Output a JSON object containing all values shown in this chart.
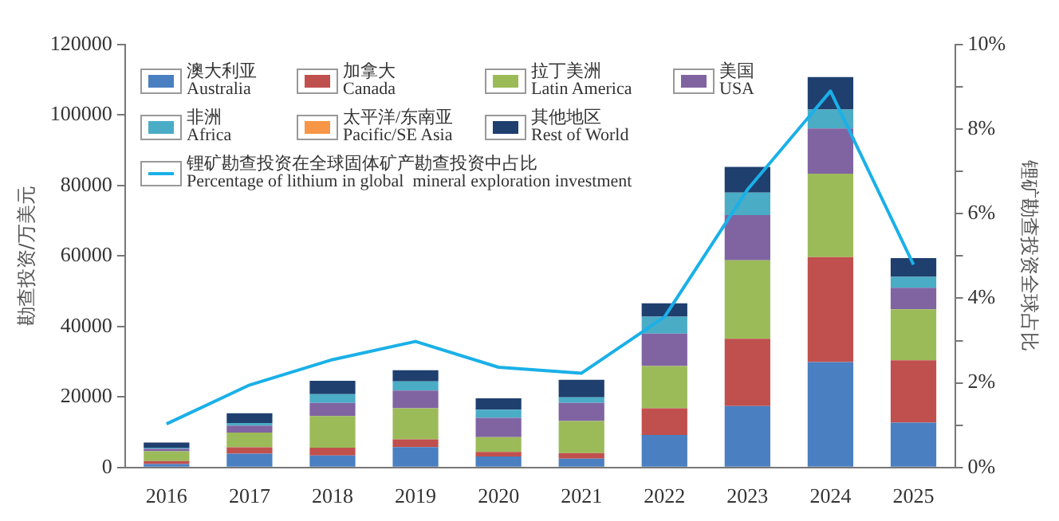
{
  "chart_data": {
    "type": "bar",
    "stacked": true,
    "categories": [
      "2016",
      "2017",
      "2018",
      "2019",
      "2020",
      "2021",
      "2022",
      "2023",
      "2024",
      "2025"
    ],
    "ylabel": "勘查投资/万美元",
    "y2label": "锂矿勘查投资全球占比",
    "ylim": [
      0,
      120000
    ],
    "yticks": [
      0,
      20000,
      40000,
      60000,
      80000,
      100000,
      120000
    ],
    "y2lim": [
      0,
      10
    ],
    "y2ticks": [
      {
        "value": 0,
        "label": "0%"
      },
      {
        "value": 1,
        "label": null
      },
      {
        "value": 2,
        "label": "2%"
      },
      {
        "value": 3,
        "label": null
      },
      {
        "value": 4,
        "label": "4%"
      },
      {
        "value": 5,
        "label": null
      },
      {
        "value": 6,
        "label": "6%"
      },
      {
        "value": 7,
        "label": null
      },
      {
        "value": 8,
        "label": "8%"
      },
      {
        "value": 9,
        "label": null
      },
      {
        "value": 10,
        "label": "10%"
      }
    ],
    "grid": false,
    "legend": "top left",
    "series": [
      {
        "name": "澳大利亚\nAustralia",
        "color": "#4a7fc1",
        "values": [
          1000,
          3900,
          3400,
          5800,
          3100,
          2500,
          9200,
          17400,
          29900,
          12700
        ]
      },
      {
        "name": "加拿大\nCanada",
        "color": "#c0504d",
        "values": [
          800,
          1800,
          2200,
          2200,
          1300,
          1600,
          7600,
          19100,
          29800,
          17700
        ]
      },
      {
        "name": "拉丁美洲\nLatin America",
        "color": "#9bbb59",
        "values": [
          2800,
          4200,
          9000,
          8800,
          4200,
          9100,
          12000,
          22300,
          23700,
          14500
        ]
      },
      {
        "name": "美国\nUSA",
        "color": "#8064a2",
        "values": [
          700,
          2000,
          3700,
          5000,
          5500,
          5100,
          9200,
          12800,
          12800,
          6100
        ]
      },
      {
        "name": "非洲\nAfrica",
        "color": "#4bacc6",
        "values": [
          300,
          700,
          2500,
          2600,
          2300,
          1600,
          4800,
          6400,
          5400,
          3100
        ]
      },
      {
        "name": "太平洋/东南亚\nPacific/SE Asia",
        "color": "#f79646",
        "values": [
          0,
          0,
          0,
          0,
          0,
          0,
          0,
          0,
          0,
          0
        ]
      },
      {
        "name": "其他地区\nRest of World",
        "color": "#1f3f6e",
        "values": [
          1500,
          2800,
          3800,
          3200,
          3200,
          5000,
          3800,
          7300,
          9200,
          5300
        ]
      },
      {
        "name": "锂矿勘查投资在全球固体矿产勘查投资中占比\nPercentage of lithium in global  mineral exploration investment",
        "type": "line",
        "axis": "y2",
        "color": "#1ab0e8",
        "marker": "none",
        "values": [
          1.03,
          1.95,
          2.55,
          2.98,
          2.37,
          2.23,
          3.56,
          6.57,
          8.9,
          4.8
        ]
      }
    ]
  }
}
